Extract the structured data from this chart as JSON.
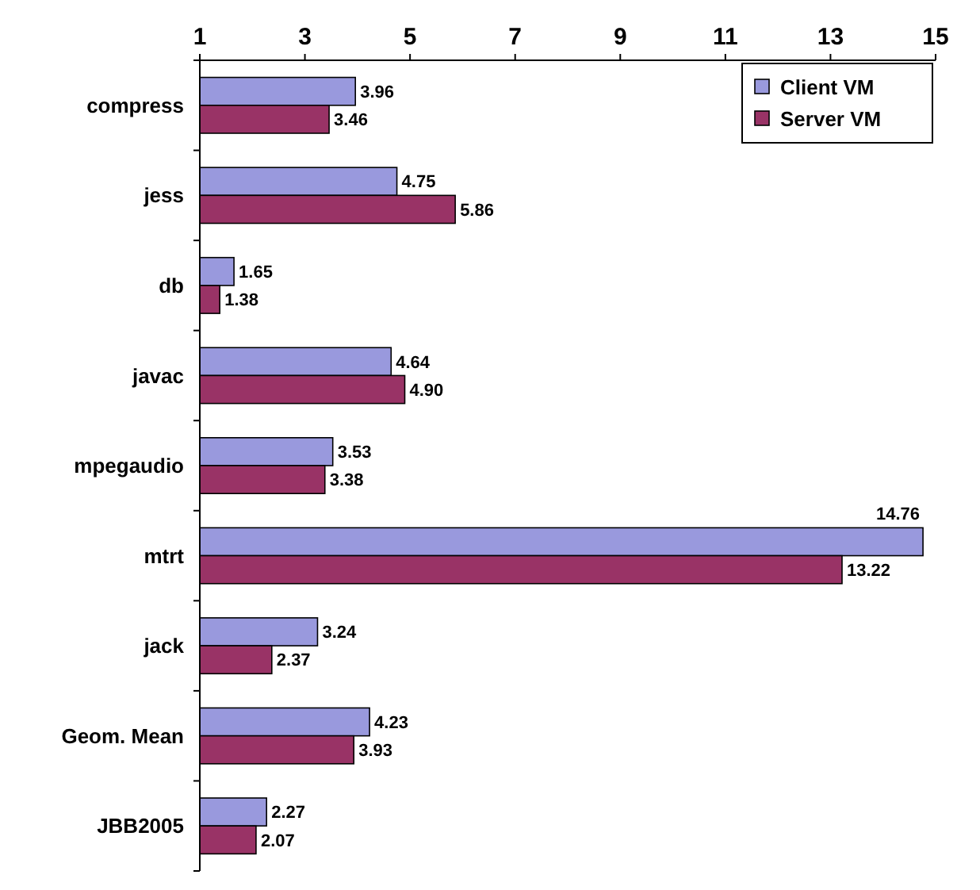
{
  "chart_data": {
    "type": "bar",
    "orientation": "horizontal",
    "categories": [
      "compress",
      "jess",
      "db",
      "javac",
      "mpegaudio",
      "mtrt",
      "jack",
      "Geom. Mean",
      "JBB2005"
    ],
    "series": [
      {
        "name": "Client VM",
        "color": "#9999dd",
        "values": [
          3.96,
          4.75,
          1.65,
          4.64,
          3.53,
          14.76,
          3.24,
          4.23,
          2.27
        ]
      },
      {
        "name": "Server VM",
        "color": "#993366",
        "values": [
          3.46,
          5.86,
          1.38,
          4.9,
          3.38,
          13.22,
          2.37,
          3.93,
          2.07
        ]
      }
    ],
    "value_labels": [
      [
        "3.96",
        "4.75",
        "1.65",
        "4.64",
        "3.53",
        "14.76",
        "3.24",
        "4.23",
        "2.27"
      ],
      [
        "3.46",
        "5.86",
        "1.38",
        "4.90",
        "3.38",
        "13.22",
        "2.37",
        "3.93",
        "2.07"
      ]
    ],
    "xlim": [
      1,
      15
    ],
    "xticks": [
      1,
      3,
      5,
      7,
      9,
      11,
      13,
      15
    ],
    "legend": "top right",
    "grid": false
  }
}
